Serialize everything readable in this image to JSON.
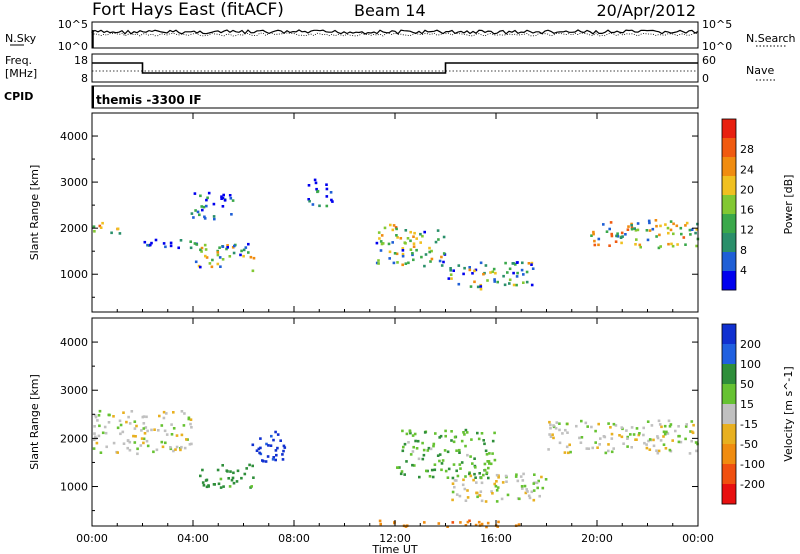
{
  "header": {
    "station": "Fort Hays East (fitACF)",
    "beam": "Beam 14",
    "date": "20/Apr/2012"
  },
  "noise_panel": {
    "left_label": "N.Sky",
    "right_label": "N.Search",
    "ticks": [
      "10^5",
      "10^0"
    ]
  },
  "freq_panel": {
    "left_label_1": "Freq.",
    "left_label_2": "[MHz]",
    "left_ticks": [
      "18",
      "8"
    ],
    "right_label": "Nave",
    "right_ticks": [
      "60",
      "0"
    ]
  },
  "cpid_panel": {
    "label": "CPID",
    "program": "themis -3300 IF"
  },
  "colors": {
    "power": [
      "#0000ee",
      "#1f5fd6",
      "#2a8f6a",
      "#3aa84a",
      "#82c832",
      "#f0c020",
      "#f08c10",
      "#f05a10",
      "#e82010"
    ],
    "velocity": [
      "#1030d0",
      "#2060e0",
      "#2e8e3a",
      "#66c232",
      "#c0c0c0",
      "#e8b020",
      "#f08c10",
      "#f05010",
      "#e81010"
    ]
  },
  "chart_data": [
    {
      "type": "heatmap",
      "quantity": "power",
      "xlabel": "",
      "ylabel": "Slant Range [km]",
      "x_ticks": [
        "00:00",
        "04:00",
        "08:00",
        "12:00",
        "16:00",
        "20:00",
        "00:00"
      ],
      "xlim_hours": [
        0,
        24
      ],
      "y_ticks": [
        1000,
        2000,
        3000,
        4000
      ],
      "ylim_km": [
        180,
        4500
      ],
      "colorbar_label": "Power [dB]",
      "colorbar_ticks": [
        "4",
        "8",
        "12",
        "16",
        "20",
        "24",
        "28"
      ],
      "colorbar_range": [
        0,
        30
      ],
      "echo_bands": [
        {
          "t": [
            0.0,
            1.3
          ],
          "r": [
            1900,
            2150
          ],
          "peak": 26
        },
        {
          "t": [
            1.6,
            4.0
          ],
          "r": [
            1600,
            1800
          ],
          "peak": 14
        },
        {
          "t": [
            3.9,
            5.6
          ],
          "r": [
            2200,
            2800
          ],
          "peak": 14
        },
        {
          "t": [
            4.0,
            6.5
          ],
          "r": [
            1100,
            1700
          ],
          "peak": 22
        },
        {
          "t": [
            8.5,
            9.5
          ],
          "r": [
            2500,
            3100
          ],
          "peak": 12
        },
        {
          "t": [
            11.2,
            14.0
          ],
          "r": [
            1200,
            2100
          ],
          "peak": 24
        },
        {
          "t": [
            14.0,
            17.5
          ],
          "r": [
            700,
            1300
          ],
          "peak": 22
        },
        {
          "t": [
            19.6,
            24.0
          ],
          "r": [
            1600,
            2200
          ],
          "peak": 26
        }
      ]
    },
    {
      "type": "heatmap",
      "quantity": "velocity",
      "xlabel": "Time UT",
      "ylabel": "Slant Range [km]",
      "x_ticks": [
        "00:00",
        "04:00",
        "08:00",
        "12:00",
        "16:00",
        "20:00",
        "00:00"
      ],
      "xlim_hours": [
        0,
        24
      ],
      "y_ticks": [
        1000,
        2000,
        3000,
        4000
      ],
      "ylim_km": [
        180,
        4500
      ],
      "colorbar_label": "Velocity [m s^-1]",
      "colorbar_ticks": [
        "200",
        "100",
        "50",
        "15",
        "-15",
        "-50",
        "-100",
        "-200"
      ],
      "colorbar_range": [
        -250,
        250
      ],
      "echo_bands": [
        {
          "t": [
            0.0,
            3.9
          ],
          "r": [
            1700,
            2600
          ],
          "vel": 0
        },
        {
          "t": [
            4.0,
            6.4
          ],
          "r": [
            1000,
            1500
          ],
          "vel": 70
        },
        {
          "t": [
            6.2,
            7.6
          ],
          "r": [
            1500,
            2200
          ],
          "vel": 220
        },
        {
          "t": [
            12.0,
            16.0
          ],
          "r": [
            1200,
            2200
          ],
          "vel": 40
        },
        {
          "t": [
            14.0,
            18.0
          ],
          "r": [
            700,
            1300
          ],
          "vel": 0
        },
        {
          "t": [
            18.0,
            24.0
          ],
          "r": [
            1700,
            2400
          ],
          "vel": 0
        },
        {
          "t": [
            11.0,
            17.0
          ],
          "r": [
            180,
            320
          ],
          "vel": -80
        }
      ]
    }
  ]
}
